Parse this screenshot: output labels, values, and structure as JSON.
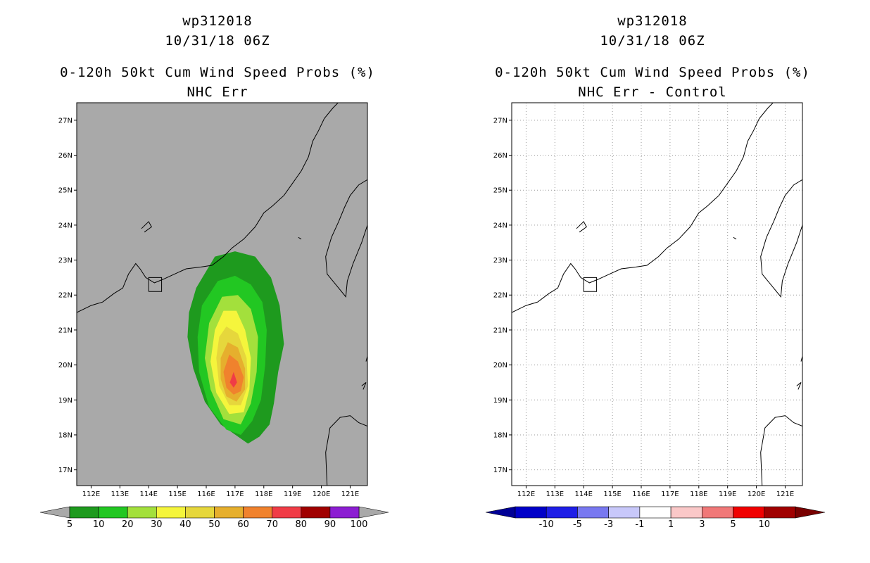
{
  "left_panel": {
    "storm_id": "wp312018",
    "datetime": "10/31/18 06Z",
    "product": "0-120h 50kt Cum Wind Speed Probs (%)",
    "subtitle": "NHC Err",
    "background_color": "#a9a9a9",
    "colorbar": {
      "labels": [
        "5",
        "10",
        "20",
        "30",
        "40",
        "50",
        "60",
        "70",
        "80",
        "90",
        "100"
      ],
      "colors": [
        "#1e9a1e",
        "#22c722",
        "#a3e03c",
        "#f5f53c",
        "#e6d73c",
        "#e6af2d",
        "#f0822d",
        "#f03c46",
        "#a00000",
        "#8c1ed2"
      ],
      "under_color": "#a9a9a9",
      "over_color": "#a9a9a9"
    }
  },
  "right_panel": {
    "storm_id": "wp312018",
    "datetime": "10/31/18 06Z",
    "product": "0-120h 50kt Cum Wind Speed Probs (%)",
    "subtitle": "NHC Err - Control",
    "background_color": "#ffffff",
    "colorbar": {
      "labels": [
        "-10",
        "-5",
        "-3",
        "-1",
        "1",
        "3",
        "5",
        "10"
      ],
      "colors": [
        "#0000c8",
        "#1e1ee6",
        "#7878f0",
        "#c8c8fa",
        "#ffffff",
        "#fac8c8",
        "#f07878",
        "#f00000",
        "#a00000"
      ],
      "under_color": "#000096",
      "over_color": "#780000"
    }
  },
  "axes": {
    "lon_labels": [
      "112E",
      "113E",
      "114E",
      "115E",
      "116E",
      "117E",
      "118E",
      "119E",
      "120E",
      "121E"
    ],
    "lat_labels": [
      "17N",
      "18N",
      "19N",
      "20N",
      "21N",
      "22N",
      "23N",
      "24N",
      "25N",
      "26N",
      "27N"
    ],
    "lon_range": [
      111.5,
      121.6
    ],
    "lat_range": [
      16.55,
      27.5
    ]
  },
  "probability_field": {
    "contours": [
      {
        "level": 5,
        "color": "#1e9a1e",
        "outline": [
          [
            116.3,
            23.1
          ],
          [
            117.0,
            23.25
          ],
          [
            117.7,
            23.1
          ],
          [
            118.25,
            22.5
          ],
          [
            118.55,
            21.7
          ],
          [
            118.7,
            20.6
          ],
          [
            118.5,
            19.8
          ],
          [
            118.35,
            18.9
          ],
          [
            118.2,
            18.3
          ],
          [
            117.85,
            17.95
          ],
          [
            117.45,
            17.75
          ],
          [
            117.1,
            17.95
          ],
          [
            116.5,
            18.3
          ],
          [
            115.95,
            18.95
          ],
          [
            115.55,
            19.9
          ],
          [
            115.35,
            20.8
          ],
          [
            115.4,
            21.5
          ],
          [
            115.65,
            22.2
          ]
        ]
      },
      {
        "level": 10,
        "color": "#22c722",
        "outline": [
          [
            116.4,
            22.4
          ],
          [
            117.0,
            22.55
          ],
          [
            117.55,
            22.3
          ],
          [
            117.95,
            21.8
          ],
          [
            118.1,
            21.0
          ],
          [
            118.05,
            20.0
          ],
          [
            117.9,
            19.0
          ],
          [
            117.6,
            18.4
          ],
          [
            117.2,
            18.0
          ],
          [
            116.7,
            18.15
          ],
          [
            116.1,
            18.8
          ],
          [
            115.75,
            19.8
          ],
          [
            115.7,
            20.8
          ],
          [
            115.85,
            21.7
          ]
        ]
      },
      {
        "level": 20,
        "color": "#a3e03c",
        "outline": [
          [
            116.55,
            21.95
          ],
          [
            117.1,
            22.0
          ],
          [
            117.55,
            21.6
          ],
          [
            117.8,
            20.8
          ],
          [
            117.75,
            19.8
          ],
          [
            117.55,
            18.9
          ],
          [
            117.2,
            18.3
          ],
          [
            116.6,
            18.45
          ],
          [
            116.15,
            19.3
          ],
          [
            115.95,
            20.2
          ],
          [
            116.1,
            21.2
          ]
        ]
      },
      {
        "level": 30,
        "color": "#f5f53c",
        "outline": [
          [
            116.6,
            21.55
          ],
          [
            117.05,
            21.55
          ],
          [
            117.35,
            21.0
          ],
          [
            117.55,
            20.2
          ],
          [
            117.5,
            19.3
          ],
          [
            117.3,
            18.65
          ],
          [
            116.8,
            18.6
          ],
          [
            116.35,
            19.2
          ],
          [
            116.15,
            20.1
          ],
          [
            116.3,
            21.0
          ]
        ]
      },
      {
        "level": 40,
        "color": "#e6d73c",
        "outline": [
          [
            116.7,
            21.1
          ],
          [
            117.1,
            20.9
          ],
          [
            117.4,
            20.2
          ],
          [
            117.45,
            19.4
          ],
          [
            117.2,
            18.85
          ],
          [
            116.8,
            18.85
          ],
          [
            116.45,
            19.4
          ],
          [
            116.35,
            20.2
          ],
          [
            116.45,
            20.8
          ]
        ]
      },
      {
        "level": 50,
        "color": "#e6af2d",
        "outline": [
          [
            116.75,
            20.65
          ],
          [
            117.1,
            20.5
          ],
          [
            117.35,
            19.9
          ],
          [
            117.35,
            19.3
          ],
          [
            117.05,
            18.95
          ],
          [
            116.7,
            19.1
          ],
          [
            116.5,
            19.6
          ],
          [
            116.5,
            20.2
          ]
        ]
      },
      {
        "level": 60,
        "color": "#f0822d",
        "outline": [
          [
            116.8,
            20.3
          ],
          [
            117.1,
            20.1
          ],
          [
            117.3,
            19.65
          ],
          [
            117.2,
            19.25
          ],
          [
            116.95,
            19.15
          ],
          [
            116.7,
            19.35
          ],
          [
            116.6,
            19.8
          ]
        ]
      },
      {
        "level": 70,
        "color": "#f03c46",
        "outline": [
          [
            116.95,
            19.8
          ],
          [
            117.07,
            19.5
          ],
          [
            116.95,
            19.35
          ],
          [
            116.82,
            19.5
          ]
        ]
      }
    ]
  }
}
